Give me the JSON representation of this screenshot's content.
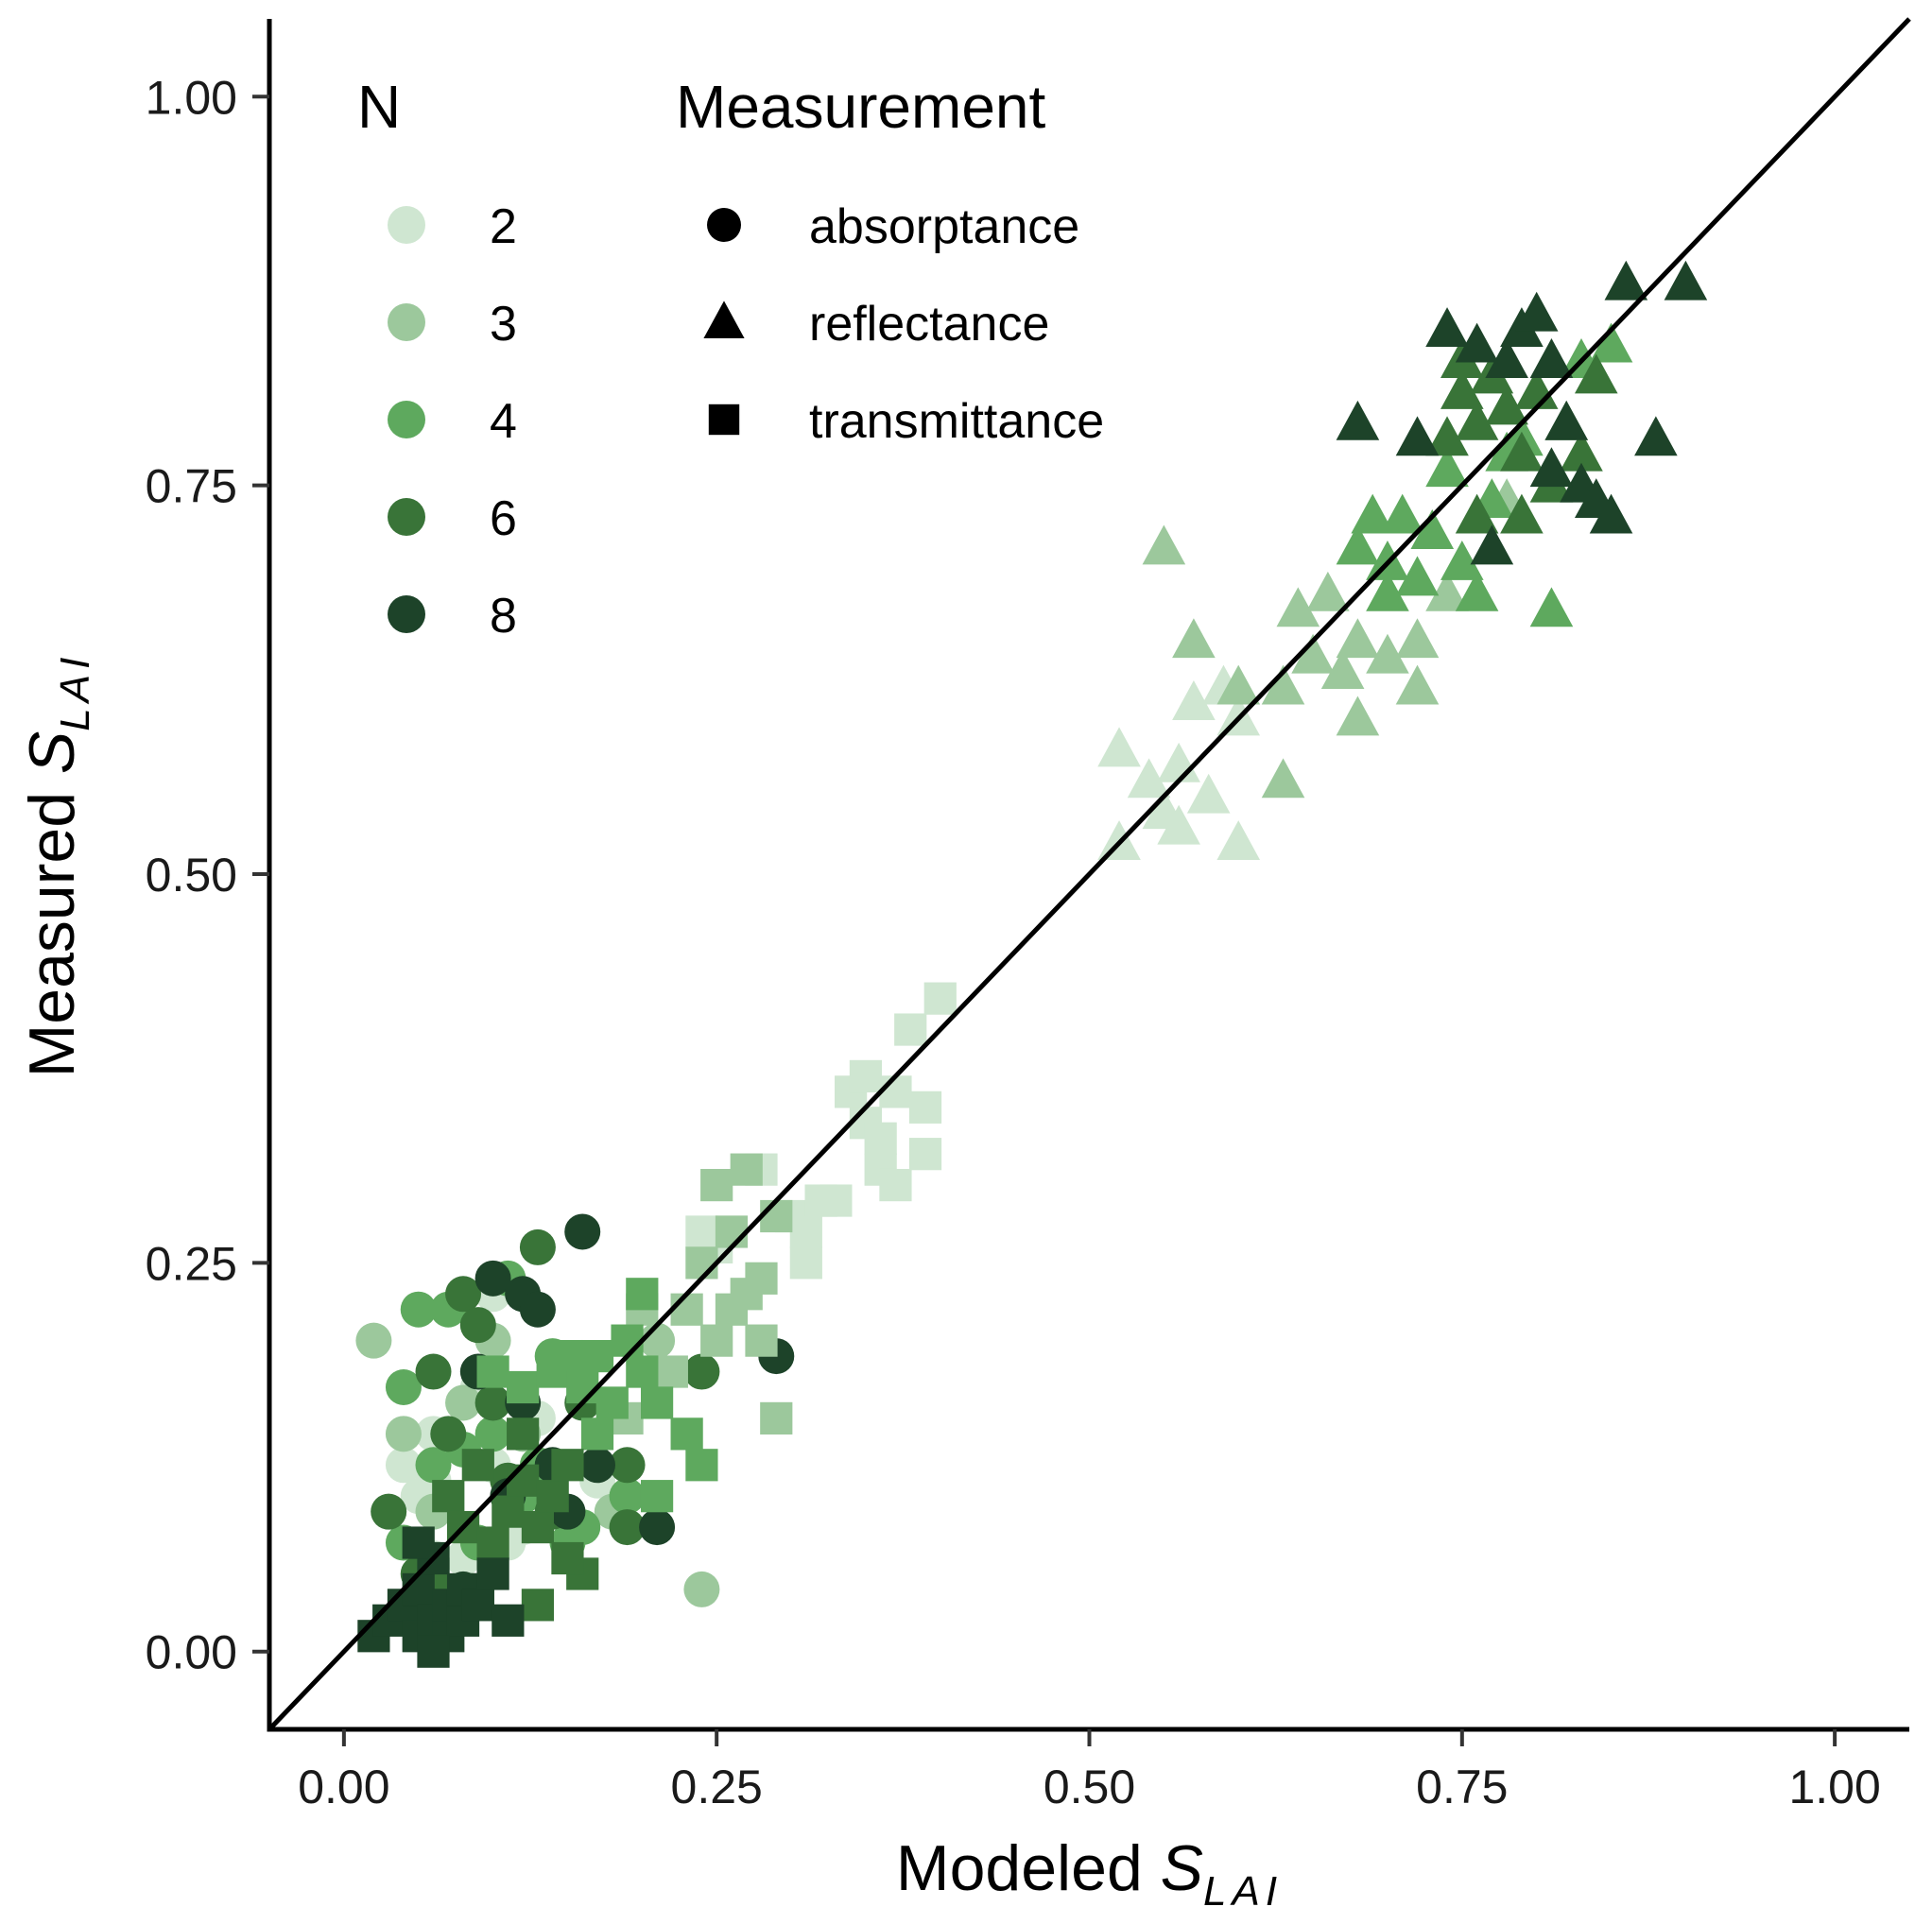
{
  "chart_data": {
    "type": "scatter",
    "xlabel_prefix": "Modeled",
    "ylabel_prefix": "Measured",
    "label_symbol": "S",
    "label_subscript": "LAI",
    "xlim": [
      -0.05,
      1.05
    ],
    "ylim": [
      -0.05,
      1.05
    ],
    "xticks": [
      "0.00",
      "0.25",
      "0.50",
      "0.75",
      "1.00"
    ],
    "yticks": [
      "0.00",
      "0.25",
      "0.50",
      "0.75",
      "1.00"
    ],
    "identity_line": true,
    "grid": false,
    "legend_color": {
      "title": "N",
      "entries": [
        {
          "label": "2",
          "color": "#cfe6d1"
        },
        {
          "label": "3",
          "color": "#9cc89c"
        },
        {
          "label": "4",
          "color": "#5ea95e"
        },
        {
          "label": "6",
          "color": "#397438"
        },
        {
          "label": "8",
          "color": "#1d4329"
        }
      ]
    },
    "legend_shape": {
      "title": "Measurement",
      "entries": [
        {
          "label": "absorptance",
          "shape": "circle"
        },
        {
          "label": "reflectance",
          "shape": "triangle"
        },
        {
          "label": "transmittance",
          "shape": "square"
        }
      ]
    },
    "series": [
      {
        "name": "absorptance",
        "shape": "circle",
        "points": [
          [
            0.04,
            0.12,
            "2"
          ],
          [
            0.04,
            0.14,
            "2"
          ],
          [
            0.05,
            0.1,
            "2"
          ],
          [
            0.06,
            0.11,
            "2"
          ],
          [
            0.06,
            0.14,
            "2"
          ],
          [
            0.06,
            0.06,
            "2"
          ],
          [
            0.08,
            0.06,
            "2"
          ],
          [
            0.09,
            0.17,
            "2"
          ],
          [
            0.1,
            0.23,
            "2"
          ],
          [
            0.11,
            0.07,
            "2"
          ],
          [
            0.12,
            0.08,
            "2"
          ],
          [
            0.1,
            0.12,
            "2"
          ],
          [
            0.17,
            0.11,
            "2"
          ],
          [
            0.13,
            0.15,
            "2"
          ],
          [
            0.02,
            0.2,
            "3"
          ],
          [
            0.04,
            0.14,
            "3"
          ],
          [
            0.06,
            0.09,
            "3"
          ],
          [
            0.08,
            0.16,
            "3"
          ],
          [
            0.1,
            0.2,
            "3"
          ],
          [
            0.12,
            0.14,
            "3"
          ],
          [
            0.18,
            0.09,
            "3"
          ],
          [
            0.21,
            0.2,
            "3"
          ],
          [
            0.24,
            0.04,
            "3"
          ],
          [
            0.04,
            0.17,
            "4"
          ],
          [
            0.04,
            0.07,
            "4"
          ],
          [
            0.05,
            0.22,
            "4"
          ],
          [
            0.06,
            0.12,
            "4"
          ],
          [
            0.07,
            0.22,
            "4"
          ],
          [
            0.08,
            0.13,
            "4"
          ],
          [
            0.09,
            0.07,
            "4"
          ],
          [
            0.1,
            0.14,
            "4"
          ],
          [
            0.11,
            0.24,
            "4"
          ],
          [
            0.12,
            0.1,
            "4"
          ],
          [
            0.13,
            0.12,
            "4"
          ],
          [
            0.14,
            0.19,
            "4"
          ],
          [
            0.15,
            0.07,
            "4"
          ],
          [
            0.16,
            0.08,
            "4"
          ],
          [
            0.19,
            0.1,
            "4"
          ],
          [
            0.03,
            0.09,
            "6"
          ],
          [
            0.05,
            0.05,
            "6"
          ],
          [
            0.06,
            0.18,
            "6"
          ],
          [
            0.07,
            0.14,
            "6"
          ],
          [
            0.08,
            0.23,
            "6"
          ],
          [
            0.09,
            0.21,
            "6"
          ],
          [
            0.1,
            0.16,
            "6"
          ],
          [
            0.11,
            0.11,
            "6"
          ],
          [
            0.13,
            0.26,
            "6"
          ],
          [
            0.14,
            0.09,
            "6"
          ],
          [
            0.16,
            0.16,
            "6"
          ],
          [
            0.19,
            0.12,
            "6"
          ],
          [
            0.19,
            0.08,
            "6"
          ],
          [
            0.24,
            0.18,
            "6"
          ],
          [
            0.06,
            0.03,
            "8"
          ],
          [
            0.08,
            0.04,
            "8"
          ],
          [
            0.09,
            0.18,
            "8"
          ],
          [
            0.1,
            0.24,
            "8"
          ],
          [
            0.11,
            0.1,
            "8"
          ],
          [
            0.12,
            0.23,
            "8"
          ],
          [
            0.12,
            0.16,
            "8"
          ],
          [
            0.13,
            0.22,
            "8"
          ],
          [
            0.14,
            0.12,
            "8"
          ],
          [
            0.15,
            0.09,
            "8"
          ],
          [
            0.16,
            0.27,
            "8"
          ],
          [
            0.17,
            0.12,
            "8"
          ],
          [
            0.21,
            0.08,
            "8"
          ],
          [
            0.29,
            0.19,
            "8"
          ]
        ]
      },
      {
        "name": "reflectance",
        "shape": "triangle",
        "points": [
          [
            0.52,
            0.52,
            "2"
          ],
          [
            0.52,
            0.58,
            "2"
          ],
          [
            0.54,
            0.56,
            "2"
          ],
          [
            0.56,
            0.53,
            "2"
          ],
          [
            0.56,
            0.57,
            "2"
          ],
          [
            0.57,
            0.61,
            "2"
          ],
          [
            0.58,
            0.55,
            "2"
          ],
          [
            0.59,
            0.62,
            "2"
          ],
          [
            0.6,
            0.6,
            "2"
          ],
          [
            0.6,
            0.52,
            "2"
          ],
          [
            0.55,
            0.54,
            "2"
          ],
          [
            0.55,
            0.71,
            "3"
          ],
          [
            0.57,
            0.65,
            "3"
          ],
          [
            0.6,
            0.62,
            "3"
          ],
          [
            0.63,
            0.62,
            "3"
          ],
          [
            0.64,
            0.67,
            "3"
          ],
          [
            0.65,
            0.64,
            "3"
          ],
          [
            0.66,
            0.68,
            "3"
          ],
          [
            0.67,
            0.63,
            "3"
          ],
          [
            0.68,
            0.65,
            "3"
          ],
          [
            0.68,
            0.6,
            "3"
          ],
          [
            0.7,
            0.64,
            "3"
          ],
          [
            0.72,
            0.62,
            "3"
          ],
          [
            0.72,
            0.65,
            "3"
          ],
          [
            0.74,
            0.68,
            "3"
          ],
          [
            0.63,
            0.56,
            "3"
          ],
          [
            0.78,
            0.74,
            "3"
          ],
          [
            0.68,
            0.71,
            "4"
          ],
          [
            0.69,
            0.73,
            "4"
          ],
          [
            0.7,
            0.7,
            "4"
          ],
          [
            0.71,
            0.73,
            "4"
          ],
          [
            0.72,
            0.69,
            "4"
          ],
          [
            0.73,
            0.72,
            "4"
          ],
          [
            0.74,
            0.76,
            "4"
          ],
          [
            0.75,
            0.7,
            "4"
          ],
          [
            0.76,
            0.68,
            "4"
          ],
          [
            0.77,
            0.74,
            "4"
          ],
          [
            0.78,
            0.77,
            "4"
          ],
          [
            0.79,
            0.78,
            "4"
          ],
          [
            0.81,
            0.67,
            "4"
          ],
          [
            0.83,
            0.83,
            "4"
          ],
          [
            0.85,
            0.84,
            "4"
          ],
          [
            0.7,
            0.68,
            "4"
          ],
          [
            0.74,
            0.78,
            "6"
          ],
          [
            0.75,
            0.81,
            "6"
          ],
          [
            0.76,
            0.79,
            "6"
          ],
          [
            0.77,
            0.82,
            "6"
          ],
          [
            0.78,
            0.8,
            "6"
          ],
          [
            0.79,
            0.77,
            "6"
          ],
          [
            0.8,
            0.81,
            "6"
          ],
          [
            0.81,
            0.75,
            "6"
          ],
          [
            0.82,
            0.79,
            "6"
          ],
          [
            0.83,
            0.77,
            "6"
          ],
          [
            0.76,
            0.73,
            "6"
          ],
          [
            0.79,
            0.73,
            "6"
          ],
          [
            0.84,
            0.82,
            "6"
          ],
          [
            0.75,
            0.83,
            "6"
          ],
          [
            0.68,
            0.79,
            "8"
          ],
          [
            0.72,
            0.78,
            "8"
          ],
          [
            0.74,
            0.85,
            "8"
          ],
          [
            0.76,
            0.84,
            "8"
          ],
          [
            0.78,
            0.83,
            "8"
          ],
          [
            0.79,
            0.85,
            "8"
          ],
          [
            0.8,
            0.86,
            "8"
          ],
          [
            0.81,
            0.83,
            "8"
          ],
          [
            0.82,
            0.79,
            "8"
          ],
          [
            0.83,
            0.75,
            "8"
          ],
          [
            0.84,
            0.74,
            "8"
          ],
          [
            0.86,
            0.88,
            "8"
          ],
          [
            0.88,
            0.78,
            "8"
          ],
          [
            0.9,
            0.88,
            "8"
          ],
          [
            0.77,
            0.71,
            "8"
          ],
          [
            0.81,
            0.76,
            "8"
          ],
          [
            0.85,
            0.73,
            "8"
          ]
        ]
      },
      {
        "name": "transmittance",
        "shape": "square",
        "points": [
          [
            0.25,
            0.26,
            "2"
          ],
          [
            0.24,
            0.27,
            "2"
          ],
          [
            0.28,
            0.31,
            "2"
          ],
          [
            0.3,
            0.28,
            "2"
          ],
          [
            0.31,
            0.27,
            "2"
          ],
          [
            0.32,
            0.29,
            "2"
          ],
          [
            0.33,
            0.29,
            "2"
          ],
          [
            0.34,
            0.36,
            "2"
          ],
          [
            0.35,
            0.34,
            "2"
          ],
          [
            0.35,
            0.37,
            "2"
          ],
          [
            0.36,
            0.33,
            "2"
          ],
          [
            0.36,
            0.31,
            "2"
          ],
          [
            0.37,
            0.36,
            "2"
          ],
          [
            0.37,
            0.3,
            "2"
          ],
          [
            0.38,
            0.4,
            "2"
          ],
          [
            0.39,
            0.35,
            "2"
          ],
          [
            0.39,
            0.32,
            "2"
          ],
          [
            0.4,
            0.42,
            "2"
          ],
          [
            0.31,
            0.25,
            "2"
          ],
          [
            0.2,
            0.22,
            "3"
          ],
          [
            0.22,
            0.18,
            "3"
          ],
          [
            0.23,
            0.22,
            "3"
          ],
          [
            0.24,
            0.25,
            "3"
          ],
          [
            0.25,
            0.2,
            "3"
          ],
          [
            0.25,
            0.3,
            "3"
          ],
          [
            0.26,
            0.27,
            "3"
          ],
          [
            0.27,
            0.31,
            "3"
          ],
          [
            0.27,
            0.23,
            "3"
          ],
          [
            0.28,
            0.24,
            "3"
          ],
          [
            0.28,
            0.2,
            "3"
          ],
          [
            0.29,
            0.28,
            "3"
          ],
          [
            0.29,
            0.15,
            "3"
          ],
          [
            0.19,
            0.15,
            "3"
          ],
          [
            0.26,
            0.22,
            "3"
          ],
          [
            0.1,
            0.18,
            "4"
          ],
          [
            0.12,
            0.17,
            "4"
          ],
          [
            0.14,
            0.18,
            "4"
          ],
          [
            0.15,
            0.19,
            "4"
          ],
          [
            0.16,
            0.17,
            "4"
          ],
          [
            0.17,
            0.19,
            "4"
          ],
          [
            0.18,
            0.16,
            "4"
          ],
          [
            0.19,
            0.2,
            "4"
          ],
          [
            0.2,
            0.18,
            "4"
          ],
          [
            0.21,
            0.16,
            "4"
          ],
          [
            0.21,
            0.1,
            "4"
          ],
          [
            0.23,
            0.14,
            "4"
          ],
          [
            0.24,
            0.12,
            "4"
          ],
          [
            0.17,
            0.14,
            "4"
          ],
          [
            0.2,
            0.23,
            "4"
          ],
          [
            0.06,
            0.05,
            "6"
          ],
          [
            0.07,
            0.1,
            "6"
          ],
          [
            0.08,
            0.08,
            "6"
          ],
          [
            0.09,
            0.04,
            "6"
          ],
          [
            0.1,
            0.07,
            "6"
          ],
          [
            0.11,
            0.09,
            "6"
          ],
          [
            0.12,
            0.11,
            "6"
          ],
          [
            0.13,
            0.03,
            "6"
          ],
          [
            0.13,
            0.08,
            "6"
          ],
          [
            0.14,
            0.1,
            "6"
          ],
          [
            0.15,
            0.12,
            "6"
          ],
          [
            0.16,
            0.05,
            "6"
          ],
          [
            0.12,
            0.14,
            "6"
          ],
          [
            0.09,
            0.12,
            "6"
          ],
          [
            0.15,
            0.06,
            "6"
          ],
          [
            0.02,
            0.01,
            "8"
          ],
          [
            0.03,
            0.02,
            "8"
          ],
          [
            0.04,
            0.03,
            "8"
          ],
          [
            0.05,
            0.01,
            "8"
          ],
          [
            0.05,
            0.04,
            "8"
          ],
          [
            0.06,
            0.02,
            "8"
          ],
          [
            0.06,
            0.06,
            "8"
          ],
          [
            0.07,
            0.01,
            "8"
          ],
          [
            0.07,
            0.03,
            "8"
          ],
          [
            0.08,
            0.02,
            "8"
          ],
          [
            0.08,
            0.04,
            "8"
          ],
          [
            0.09,
            0.03,
            "8"
          ],
          [
            0.1,
            0.05,
            "8"
          ],
          [
            0.11,
            0.02,
            "8"
          ],
          [
            0.05,
            0.07,
            "8"
          ],
          [
            0.06,
            0.0,
            "8"
          ]
        ]
      }
    ]
  }
}
